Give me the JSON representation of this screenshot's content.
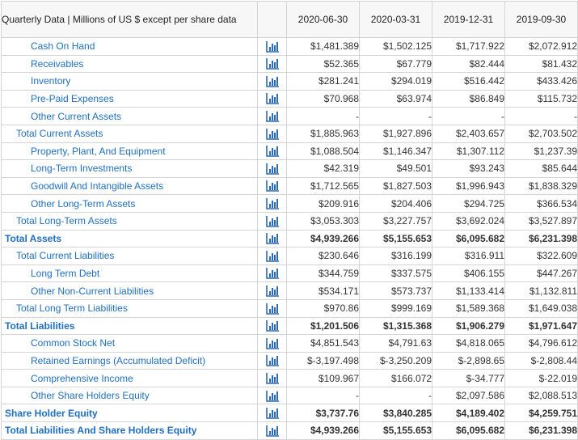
{
  "header": {
    "title": "Quarterly Data | Millions of US $ except per share data",
    "dates": [
      "2020-06-30",
      "2020-03-31",
      "2019-12-31",
      "2019-09-30"
    ]
  },
  "icon": {
    "name": "bar-chart-icon",
    "color": "#2a6ab8"
  },
  "rows": [
    {
      "label": "Cash On Hand",
      "level": 2,
      "bold": false,
      "values": [
        "$1,481.389",
        "$1,502.125",
        "$1,717.922",
        "$2,072.912"
      ]
    },
    {
      "label": "Receivables",
      "level": 2,
      "bold": false,
      "values": [
        "$52.365",
        "$67.779",
        "$82.444",
        "$81.432"
      ]
    },
    {
      "label": "Inventory",
      "level": 2,
      "bold": false,
      "values": [
        "$281.241",
        "$294.019",
        "$516.442",
        "$433.426"
      ]
    },
    {
      "label": "Pre-Paid Expenses",
      "level": 2,
      "bold": false,
      "values": [
        "$70.968",
        "$63.974",
        "$86.849",
        "$115.732"
      ]
    },
    {
      "label": "Other Current Assets",
      "level": 2,
      "bold": false,
      "values": [
        "-",
        "-",
        "-",
        "-"
      ]
    },
    {
      "label": "Total Current Assets",
      "level": 1,
      "bold": false,
      "values": [
        "$1,885.963",
        "$1,927.896",
        "$2,403.657",
        "$2,703.502"
      ]
    },
    {
      "label": "Property, Plant, And Equipment",
      "level": 2,
      "bold": false,
      "values": [
        "$1,088.504",
        "$1,146.347",
        "$1,307.112",
        "$1,237.39"
      ]
    },
    {
      "label": "Long-Term Investments",
      "level": 2,
      "bold": false,
      "values": [
        "$42.319",
        "$49.501",
        "$93.243",
        "$85.644"
      ]
    },
    {
      "label": "Goodwill And Intangible Assets",
      "level": 2,
      "bold": false,
      "values": [
        "$1,712.565",
        "$1,827.503",
        "$1,996.943",
        "$1,838.329"
      ]
    },
    {
      "label": "Other Long-Term Assets",
      "level": 2,
      "bold": false,
      "values": [
        "$209.916",
        "$204.406",
        "$294.725",
        "$366.534"
      ]
    },
    {
      "label": "Total Long-Term Assets",
      "level": 1,
      "bold": false,
      "values": [
        "$3,053.303",
        "$3,227.757",
        "$3,692.024",
        "$3,527.897"
      ]
    },
    {
      "label": "Total Assets",
      "level": 0,
      "bold": true,
      "values": [
        "$4,939.266",
        "$5,155.653",
        "$6,095.682",
        "$6,231.398"
      ]
    },
    {
      "label": "Total Current Liabilities",
      "level": 1,
      "bold": false,
      "values": [
        "$230.646",
        "$316.199",
        "$316.911",
        "$322.609"
      ]
    },
    {
      "label": "Long Term Debt",
      "level": 2,
      "bold": false,
      "values": [
        "$344.759",
        "$337.575",
        "$406.155",
        "$447.267"
      ]
    },
    {
      "label": "Other Non-Current Liabilities",
      "level": 2,
      "bold": false,
      "values": [
        "$534.171",
        "$573.737",
        "$1,133.414",
        "$1,132.811"
      ]
    },
    {
      "label": "Total Long Term Liabilities",
      "level": 1,
      "bold": false,
      "values": [
        "$970.86",
        "$999.169",
        "$1,589.368",
        "$1,649.038"
      ]
    },
    {
      "label": "Total Liabilities",
      "level": 0,
      "bold": true,
      "values": [
        "$1,201.506",
        "$1,315.368",
        "$1,906.279",
        "$1,971.647"
      ]
    },
    {
      "label": "Common Stock Net",
      "level": 2,
      "bold": false,
      "values": [
        "$4,851.543",
        "$4,791.63",
        "$4,818.065",
        "$4,796.612"
      ]
    },
    {
      "label": "Retained Earnings (Accumulated Deficit)",
      "level": 2,
      "bold": false,
      "values": [
        "$-3,197.498",
        "$-3,250.209",
        "$-2,898.65",
        "$-2,808.44"
      ]
    },
    {
      "label": "Comprehensive Income",
      "level": 2,
      "bold": false,
      "values": [
        "$109.967",
        "$166.072",
        "$-34.777",
        "$-22.019"
      ]
    },
    {
      "label": "Other Share Holders Equity",
      "level": 2,
      "bold": false,
      "values": [
        "-",
        "-",
        "$2,097.586",
        "$2,088.513"
      ]
    },
    {
      "label": "Share Holder Equity",
      "level": 0,
      "bold": true,
      "values": [
        "$3,737.76",
        "$3,840.285",
        "$4,189.402",
        "$4,259.751"
      ]
    },
    {
      "label": "Total Liabilities And Share Holders Equity",
      "level": 0,
      "bold": true,
      "values": [
        "$4,939.266",
        "$5,155.653",
        "$6,095.682",
        "$6,231.398"
      ]
    }
  ]
}
